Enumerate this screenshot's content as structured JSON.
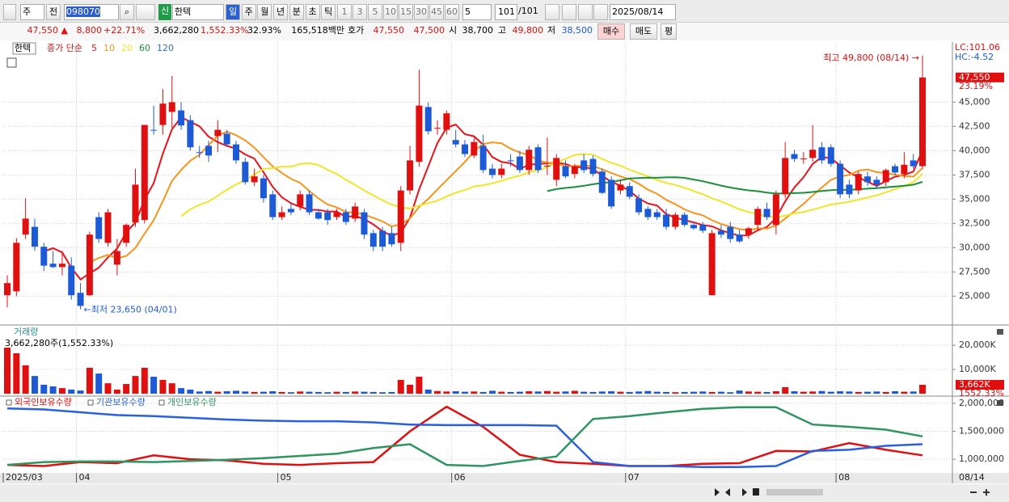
{
  "toolbar": {
    "period_type": "주",
    "prev": "전",
    "code": "098070",
    "badge": "신",
    "name": "한텍",
    "periods": [
      "일",
      "주",
      "월",
      "년",
      "분",
      "초",
      "틱"
    ],
    "intervals": [
      "1",
      "3",
      "5",
      "10",
      "15",
      "30",
      "45",
      "60"
    ],
    "count_select": "5",
    "count": "101",
    "total": "/101",
    "date": "2025/08/14"
  },
  "quote": {
    "price": "47,550 ▲",
    "change": "8,800",
    "change_pct": "+22.71%",
    "volume": "3,662,280",
    "volume_pct": "1,552.33%",
    "turnover": "32.93%",
    "amount": "165,518백만",
    "ask_label": "호가",
    "ask": "47,550",
    "bid": "47,500",
    "open_label": "시",
    "open": "38,700",
    "high_label": "고",
    "high": "49,800",
    "low_label": "저",
    "low": "38,500",
    "buy": "매수",
    "sell": "매도",
    "avg": "평"
  },
  "chart_data": [
    {
      "type": "candlestick",
      "name": "한텍",
      "legend_label": "종가 단순",
      "ma": [
        {
          "name": "5",
          "color": "#e8141c"
        },
        {
          "name": "10",
          "color": "#f7941d"
        },
        {
          "name": "20",
          "color": "#f0e52a"
        },
        {
          "name": "60",
          "color": "#1a8f3c"
        },
        {
          "name": "120",
          "color": "#2a6bd1"
        }
      ],
      "up_color": "#e01010",
      "down_color": "#1d5bd6",
      "ohlc": [
        [
          25100,
          27150,
          23850,
          26350
        ],
        [
          25500,
          31000,
          25000,
          30500
        ],
        [
          31350,
          35100,
          30900,
          33000
        ],
        [
          32150,
          33000,
          29700,
          30100
        ],
        [
          30100,
          30500,
          27600,
          28150
        ],
        [
          28350,
          29650,
          27900,
          28000
        ],
        [
          28000,
          29650,
          27150,
          28350
        ],
        [
          28150,
          29000,
          24650,
          25100
        ],
        [
          25350,
          26350,
          23650,
          24000
        ],
        [
          25100,
          31650,
          25000,
          31350
        ],
        [
          33150,
          33650,
          30500,
          30900
        ],
        [
          30500,
          34000,
          30100,
          33650
        ],
        [
          28250,
          30900,
          27150,
          29650
        ],
        [
          30500,
          32500,
          30100,
          32350
        ],
        [
          32600,
          38150,
          32150,
          36500
        ],
        [
          32850,
          42650,
          32500,
          42650
        ],
        [
          42150,
          44650,
          41650,
          42100
        ],
        [
          42650,
          46350,
          41650,
          44850
        ],
        [
          44000,
          47700,
          42350,
          45000
        ],
        [
          44150,
          45000,
          42150,
          42600
        ],
        [
          43150,
          43650,
          40000,
          40350
        ],
        [
          39850,
          40500,
          39250,
          39800
        ],
        [
          40500,
          41000,
          38850,
          39500
        ],
        [
          41500,
          43150,
          39850,
          42150
        ],
        [
          41750,
          42150,
          40500,
          40650
        ],
        [
          40650,
          41000,
          38650,
          39000
        ],
        [
          38850,
          39250,
          36500,
          36750
        ],
        [
          36750,
          38150,
          36350,
          37350
        ],
        [
          37150,
          37500,
          34650,
          35100
        ],
        [
          35500,
          35900,
          32850,
          33150
        ],
        [
          33150,
          34250,
          32850,
          33650
        ],
        [
          34000,
          34650,
          33350,
          33650
        ],
        [
          34250,
          35900,
          33850,
          35500
        ],
        [
          35500,
          35900,
          33350,
          33650
        ],
        [
          33650,
          34000,
          32850,
          33000
        ],
        [
          33650,
          34000,
          32350,
          32850
        ],
        [
          33150,
          34000,
          32850,
          33650
        ],
        [
          33650,
          34000,
          32350,
          32650
        ],
        [
          33000,
          34650,
          32650,
          34250
        ],
        [
          33650,
          34000,
          30900,
          31350
        ],
        [
          31500,
          31850,
          29650,
          30100
        ],
        [
          31750,
          32150,
          29650,
          30100
        ],
        [
          31500,
          32150,
          30100,
          30350
        ],
        [
          30500,
          36350,
          29650,
          35900
        ],
        [
          35900,
          40500,
          35500,
          39000
        ],
        [
          38850,
          48350,
          38350,
          44650
        ],
        [
          44500,
          45000,
          41650,
          42000
        ],
        [
          42350,
          43150,
          41650,
          42350
        ],
        [
          42150,
          44150,
          41650,
          43850
        ],
        [
          41100,
          42150,
          40350,
          40650
        ],
        [
          40650,
          41100,
          39350,
          39650
        ],
        [
          39500,
          41350,
          39250,
          40900
        ],
        [
          40500,
          41650,
          37700,
          38000
        ],
        [
          38150,
          38650,
          37150,
          37500
        ],
        [
          37500,
          38650,
          37150,
          38150
        ],
        [
          39000,
          39650,
          38350,
          38950
        ],
        [
          39400,
          40000,
          37700,
          38000
        ],
        [
          38000,
          40500,
          37500,
          40100
        ],
        [
          40350,
          40650,
          37700,
          38000
        ],
        [
          38400,
          41350,
          37500,
          38450
        ],
        [
          37000,
          39650,
          36350,
          39250
        ],
        [
          38400,
          39000,
          37150,
          37350
        ],
        [
          37600,
          38650,
          37150,
          38400
        ],
        [
          39000,
          39650,
          37700,
          38000
        ],
        [
          39150,
          39500,
          37350,
          37600
        ],
        [
          37850,
          38150,
          35500,
          35650
        ],
        [
          37000,
          37350,
          34000,
          34250
        ],
        [
          35900,
          37000,
          35500,
          36500
        ],
        [
          36350,
          36750,
          35000,
          35250
        ],
        [
          35100,
          35500,
          33350,
          33650
        ],
        [
          34000,
          34250,
          32850,
          33150
        ],
        [
          33650,
          34000,
          32850,
          33150
        ],
        [
          33400,
          34000,
          31850,
          32150
        ],
        [
          32150,
          33650,
          31850,
          33400
        ],
        [
          33400,
          33650,
          32150,
          32350
        ],
        [
          32350,
          32650,
          31850,
          32000
        ],
        [
          32350,
          32650,
          31500,
          31750
        ],
        [
          25100,
          31850,
          25100,
          31500
        ],
        [
          31750,
          32350,
          31000,
          31350
        ],
        [
          32150,
          32650,
          30500,
          30900
        ],
        [
          31350,
          31850,
          30500,
          30650
        ],
        [
          31350,
          32150,
          30900,
          32000
        ],
        [
          32350,
          34250,
          31850,
          34000
        ],
        [
          34000,
          34650,
          32850,
          33150
        ],
        [
          32350,
          35900,
          31350,
          35500
        ],
        [
          35500,
          40900,
          35100,
          39250
        ],
        [
          39650,
          40100,
          38850,
          39150
        ],
        [
          39150,
          39850,
          38650,
          39200
        ],
        [
          39250,
          42650,
          38850,
          40100
        ],
        [
          40350,
          40900,
          38650,
          39000
        ],
        [
          40350,
          40650,
          38350,
          38650
        ],
        [
          38650,
          39000,
          35100,
          35500
        ],
        [
          36500,
          37000,
          35100,
          35500
        ],
        [
          35900,
          37850,
          35500,
          37600
        ],
        [
          37350,
          37850,
          36350,
          36750
        ],
        [
          37000,
          37350,
          36150,
          36500
        ],
        [
          36750,
          38150,
          36350,
          38000
        ],
        [
          38400,
          38650,
          37500,
          37750
        ],
        [
          37600,
          39850,
          37150,
          38550
        ],
        [
          39000,
          39650,
          38150,
          38400
        ],
        [
          38400,
          49800,
          38150,
          47550
        ]
      ],
      "ylim": [
        22200,
        51200
      ],
      "yticks": [
        {
          "value": 25000,
          "label": "25,000"
        },
        {
          "value": 27500,
          "label": "27,500"
        },
        {
          "value": 30000,
          "label": "30,000"
        },
        {
          "value": 32500,
          "label": "32,500"
        },
        {
          "value": 35000,
          "label": "35,000"
        },
        {
          "value": 37500,
          "label": "37,500"
        },
        {
          "value": 40000,
          "label": "40,000"
        },
        {
          "value": 42500,
          "label": "42,500"
        },
        {
          "value": 45000,
          "label": "45,000"
        }
      ],
      "xticks": [
        {
          "value": 0,
          "label": "2025/03"
        },
        {
          "value": 8,
          "label": "04"
        },
        {
          "value": 30,
          "label": "05"
        },
        {
          "value": 49,
          "label": "06"
        },
        {
          "value": 68,
          "label": "07"
        },
        {
          "value": 91,
          "label": "08"
        }
      ],
      "x_last_label": "08/14",
      "annotations": {
        "high": "최고 49,800 (08/14) →",
        "low": "←최저 23,650 (04/01)"
      },
      "right_labels": {
        "lc": "LC:101.06",
        "hc": "HC:-4.52",
        "last": "47,550",
        "last_pct": "23.19%"
      },
      "grid": true
    },
    {
      "type": "bar",
      "title": "거래량",
      "subtitle": "3,662,280주(1,552.33%)",
      "values": [
        19000000,
        16700000,
        11700000,
        7300000,
        3700000,
        3000000,
        2300000,
        1700000,
        1300000,
        10700000,
        8300000,
        4300000,
        1700000,
        4000000,
        7300000,
        10700000,
        7000000,
        5700000,
        4300000,
        2300000,
        1700000,
        900000,
        1100000,
        800000,
        1000000,
        1200000,
        900000,
        700000,
        800000,
        1000000,
        700000,
        600000,
        900000,
        800000,
        700000,
        600000,
        800000,
        700000,
        900000,
        800000,
        700000,
        600000,
        700000,
        5700000,
        3700000,
        7000000,
        1700000,
        1100000,
        900000,
        1000000,
        800000,
        900000,
        700000,
        1200000,
        800000,
        700000,
        800000,
        1000000,
        900000,
        1100000,
        800000,
        900000,
        1200000,
        800000,
        700000,
        900000,
        1000000,
        800000,
        700000,
        900000,
        1100000,
        800000,
        700000,
        600000,
        700000,
        800000,
        900000,
        700000,
        800000,
        600000,
        1300000,
        900000,
        800000,
        700000,
        1000000,
        2700000,
        1000000,
        800000,
        900000,
        1100000,
        800000,
        1000000,
        900000,
        700000,
        800000,
        900000,
        700000,
        1000000,
        800000,
        900000,
        3662280
      ],
      "last_label": "3,662K",
      "last_pct": "1552.33%",
      "ylim": [
        0,
        27700000
      ],
      "yticks": [
        {
          "value": 10000000,
          "label": "10,000K"
        },
        {
          "value": 20000000,
          "label": "20,000K"
        }
      ]
    },
    {
      "type": "line",
      "x": [
        0,
        4,
        8,
        12,
        16,
        20,
        24,
        28,
        32,
        36,
        40,
        44,
        48,
        52,
        56,
        60,
        64,
        68,
        72,
        76,
        80,
        84,
        88,
        92,
        96,
        100
      ],
      "series": [
        {
          "name": "외국인보유수량",
          "color": "#e01010",
          "values": [
            900000,
            880000,
            950000,
            930000,
            1070000,
            1000000,
            980000,
            920000,
            900000,
            930000,
            950000,
            1500000,
            1940000,
            1580000,
            1080000,
            950000,
            920000,
            880000,
            880000,
            920000,
            930000,
            1150000,
            1140000,
            1290000,
            1170000,
            1070000
          ]
        },
        {
          "name": "기관보유수량",
          "color": "#2a5fe0",
          "values": [
            1910000,
            1890000,
            1840000,
            1790000,
            1770000,
            1740000,
            1710000,
            1690000,
            1680000,
            1680000,
            1660000,
            1620000,
            1610000,
            1610000,
            1610000,
            1600000,
            950000,
            880000,
            880000,
            860000,
            860000,
            880000,
            1150000,
            1170000,
            1240000,
            1270000
          ]
        },
        {
          "name": "개인보유수량",
          "color": "#2e9460",
          "values": [
            900000,
            950000,
            960000,
            960000,
            950000,
            970000,
            990000,
            1020000,
            1060000,
            1100000,
            1200000,
            1270000,
            900000,
            880000,
            970000,
            1050000,
            1720000,
            1770000,
            1840000,
            1900000,
            1930000,
            1930000,
            1620000,
            1580000,
            1530000,
            1410000
          ]
        }
      ],
      "ylim": [
        771000,
        2100000
      ],
      "yticks": [
        {
          "value": 1000000,
          "label": "1,000,000"
        },
        {
          "value": 1500000,
          "label": "1,500,000"
        },
        {
          "value": 2000000,
          "label": "2,000,000"
        }
      ]
    }
  ]
}
